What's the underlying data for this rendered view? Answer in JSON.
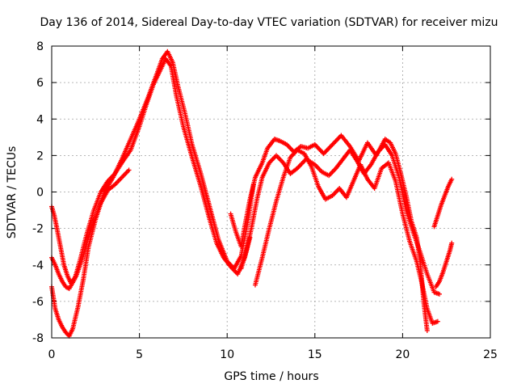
{
  "chart_data": {
    "type": "scatter",
    "title": "Day 136 of 2014, Sidereal Day-to-day VTEC variation (SDTVAR) for receiver mizu",
    "xlabel": "GPS time / hours",
    "ylabel": "SDTVAR / TECUs",
    "xlim": [
      0,
      25
    ],
    "ylim": [
      -8,
      8
    ],
    "xticks": [
      0,
      5,
      10,
      15,
      20,
      25
    ],
    "yticks": [
      -8,
      -6,
      -4,
      -2,
      0,
      2,
      4,
      6,
      8
    ],
    "grid": true,
    "marker": "+",
    "color": "#ff0000",
    "series": [
      {
        "x": [
          0.0,
          0.2,
          0.4,
          0.6,
          0.8,
          1.0,
          1.2,
          1.5,
          1.8,
          2.1,
          2.5,
          3.0,
          3.5,
          4.0,
          4.5,
          5.0,
          5.5,
          6.0,
          6.3,
          6.6,
          6.9,
          7.2,
          7.6,
          8.0,
          8.5,
          9.0,
          9.5,
          10.0,
          10.4,
          10.8,
          11.2,
          11.5
        ],
        "y": [
          -5.2,
          -6.4,
          -7.0,
          -7.4,
          -7.7,
          -7.9,
          -7.5,
          -6.3,
          -4.8,
          -3.0,
          -1.5,
          0.0,
          0.8,
          1.8,
          2.9,
          4.0,
          5.2,
          6.5,
          7.3,
          7.7,
          7.1,
          5.8,
          4.3,
          2.6,
          1.0,
          -0.8,
          -2.6,
          -3.8,
          -4.2,
          -3.5,
          -1.5,
          0.4
        ]
      },
      {
        "x": [
          0.0,
          0.2,
          0.4,
          0.6,
          0.8,
          1.0,
          1.3,
          1.6,
          2.0,
          2.4,
          2.8,
          3.2,
          3.6,
          4.0,
          4.5,
          5.0,
          5.4,
          5.8,
          6.2,
          6.5,
          6.8,
          7.1,
          7.5,
          8.0,
          8.5,
          9.0,
          9.4,
          9.8,
          10.2,
          10.6,
          11.0,
          11.3
        ],
        "y": [
          -3.6,
          -4.0,
          -4.5,
          -4.9,
          -5.2,
          -5.3,
          -4.8,
          -3.8,
          -2.3,
          -1.0,
          0.0,
          0.6,
          1.0,
          1.6,
          2.3,
          3.6,
          4.8,
          5.9,
          6.7,
          7.3,
          6.9,
          5.3,
          3.6,
          1.9,
          0.3,
          -1.5,
          -2.8,
          -3.6,
          -4.1,
          -4.5,
          -3.6,
          -2.5
        ]
      },
      {
        "x": [
          0.0,
          0.15,
          0.3,
          0.5,
          0.7,
          0.9,
          1.1,
          1.4,
          1.7,
          2.0,
          2.4,
          2.8,
          3.2,
          3.6,
          4.0,
          4.4
        ],
        "y": [
          -0.8,
          -1.3,
          -2.0,
          -3.0,
          -4.0,
          -4.6,
          -5.0,
          -4.6,
          -3.8,
          -2.8,
          -1.6,
          -0.6,
          0.1,
          0.4,
          0.8,
          1.2
        ]
      },
      {
        "x": [
          10.2,
          10.5,
          10.8,
          11.0,
          11.3,
          11.6,
          12.0,
          12.3,
          12.7,
          13.0,
          13.4,
          13.8,
          14.2,
          14.6,
          15.0,
          15.5,
          16.0,
          16.5,
          17.0,
          17.5,
          18.0,
          18.5,
          19.0,
          19.3,
          19.6,
          19.9,
          20.2,
          20.5,
          20.8,
          21.0,
          21.2,
          21.4
        ],
        "y": [
          -1.2,
          -2.2,
          -3.0,
          -1.9,
          -0.4,
          0.8,
          1.6,
          2.4,
          2.9,
          2.8,
          2.6,
          2.2,
          2.5,
          2.4,
          2.6,
          2.1,
          2.6,
          3.1,
          2.5,
          1.7,
          2.7,
          2.0,
          2.9,
          2.7,
          2.1,
          1.0,
          -0.2,
          -1.6,
          -2.5,
          -3.8,
          -6.0,
          -7.6
        ]
      },
      {
        "x": [
          10.8,
          11.1,
          11.4,
          11.7,
          12.0,
          12.4,
          12.8,
          13.2,
          13.6,
          14.0,
          14.5,
          15.0,
          15.4,
          15.8,
          16.2,
          16.6,
          17.0,
          17.4,
          17.8,
          18.2,
          18.6,
          19.0,
          19.4,
          19.8,
          20.2,
          20.6,
          21.0,
          21.4,
          21.8,
          22.1
        ],
        "y": [
          -4.2,
          -3.2,
          -1.9,
          -0.4,
          0.8,
          1.6,
          2.0,
          1.6,
          1.0,
          1.3,
          1.8,
          1.5,
          1.1,
          0.9,
          1.3,
          1.8,
          2.3,
          1.7,
          1.0,
          1.5,
          2.2,
          2.6,
          2.0,
          0.8,
          -1.0,
          -2.2,
          -3.3,
          -4.5,
          -5.5,
          -5.6
        ]
      },
      {
        "x": [
          11.6,
          12.0,
          12.4,
          12.8,
          13.2,
          13.6,
          14.0,
          14.4,
          14.8,
          15.2,
          15.6,
          16.0,
          16.4,
          16.8,
          17.2,
          17.6,
          18.0,
          18.4,
          18.8,
          19.2,
          19.6,
          20.0,
          20.4,
          20.8,
          21.1,
          21.4,
          21.7,
          22.0
        ],
        "y": [
          -5.1,
          -3.6,
          -2.0,
          -0.5,
          0.8,
          1.9,
          2.3,
          2.1,
          1.4,
          0.3,
          -0.4,
          -0.2,
          0.2,
          -0.3,
          0.6,
          1.5,
          0.7,
          0.2,
          1.3,
          1.6,
          0.6,
          -1.2,
          -2.7,
          -3.8,
          -5.0,
          -6.4,
          -7.2,
          -7.1
        ]
      },
      {
        "x": [
          21.8,
          22.0,
          22.2,
          22.4,
          22.6,
          22.8
        ],
        "y": [
          -1.9,
          -1.3,
          -0.7,
          -0.2,
          0.3,
          0.7
        ]
      },
      {
        "x": [
          21.9,
          22.1,
          22.3,
          22.5,
          22.7,
          22.8
        ],
        "y": [
          -5.2,
          -4.9,
          -4.4,
          -3.8,
          -3.2,
          -2.8
        ]
      }
    ]
  }
}
